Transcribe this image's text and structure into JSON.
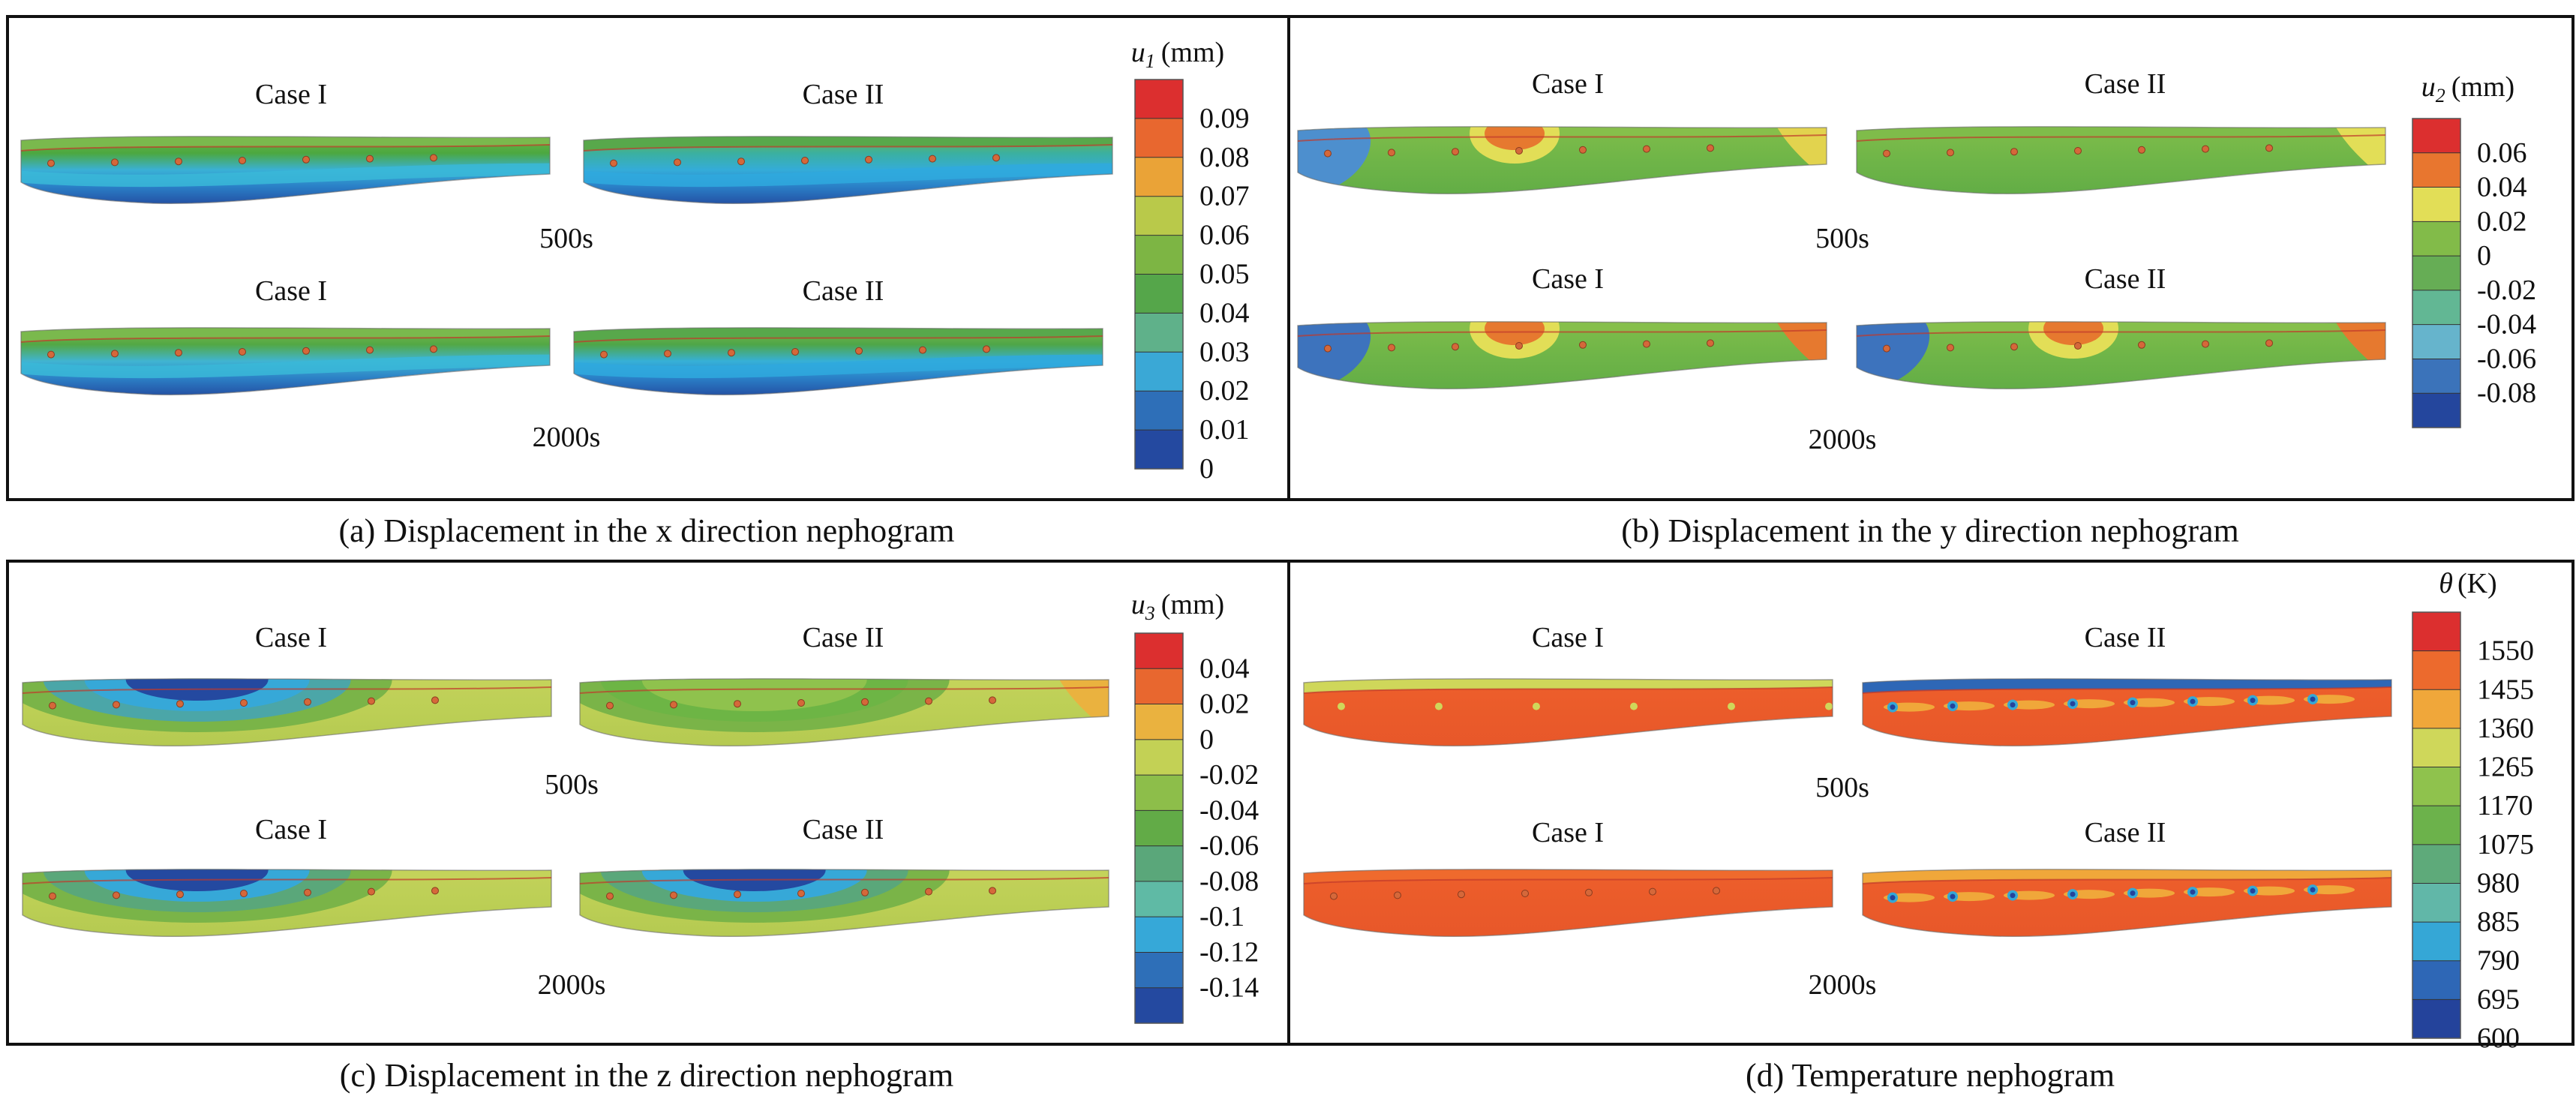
{
  "panels": [
    {
      "id": "a",
      "caption": "(a) Displacement in the x direction nephogram",
      "legend": {
        "variable": "u",
        "subscript": "1",
        "unit": "(mm)",
        "colors": [
          "#dc2f2f",
          "#e8672f",
          "#eaa337",
          "#b9c94a",
          "#7db544",
          "#55a64a",
          "#5fb18a",
          "#3aa8d6",
          "#2e6fb8",
          "#2449a0"
        ],
        "labels": [
          "0.09",
          "0.08",
          "0.07",
          "0.06",
          "0.05",
          "0.04",
          "0.03",
          "0.02",
          "0.01",
          "0"
        ]
      },
      "rows": [
        {
          "time": "500s",
          "cases": [
            {
              "label": "Case I",
              "style": "x500a"
            },
            {
              "label": "Case II",
              "style": "x500b"
            }
          ]
        },
        {
          "time": "2000s",
          "cases": [
            {
              "label": "Case I",
              "style": "x2000a"
            },
            {
              "label": "Case II",
              "style": "x2000b"
            }
          ]
        }
      ]
    },
    {
      "id": "b",
      "caption": "(b) Displacement in the y direction nephogram",
      "legend": {
        "variable": "u",
        "subscript": "2",
        "unit": "(mm)",
        "colors": [
          "#dc2f2f",
          "#e8762f",
          "#e2de57",
          "#82bb49",
          "#66ad55",
          "#62b794",
          "#66b4cc",
          "#3b73ba",
          "#24469d"
        ],
        "labels": [
          "0.06",
          "0.04",
          "0.02",
          "0",
          "-0.02",
          "-0.04",
          "-0.06",
          "-0.08"
        ]
      },
      "rows": [
        {
          "time": "500s",
          "cases": [
            {
              "label": "Case I",
              "style": "y500a"
            },
            {
              "label": "Case II",
              "style": "y500b"
            }
          ]
        },
        {
          "time": "2000s",
          "cases": [
            {
              "label": "Case I",
              "style": "y2000a"
            },
            {
              "label": "Case II",
              "style": "y2000b"
            }
          ]
        }
      ]
    },
    {
      "id": "c",
      "caption": "(c) Displacement in the z direction nephogram",
      "legend": {
        "variable": "u",
        "subscript": "3",
        "unit": "(mm)",
        "colors": [
          "#dc2f2f",
          "#e8672f",
          "#eab23f",
          "#c3d155",
          "#8dbe4a",
          "#62ab47",
          "#5aa77a",
          "#5fbaa5",
          "#36a8d8",
          "#2e6fb8",
          "#2449a0"
        ],
        "labels": [
          "0.04",
          "0.02",
          "0",
          "-0.02",
          "-0.04",
          "-0.06",
          "-0.08",
          "-0.1",
          "-0.12",
          "-0.14"
        ]
      },
      "rows": [
        {
          "time": "500s",
          "cases": [
            {
              "label": "Case I",
              "style": "z500a"
            },
            {
              "label": "Case II",
              "style": "z500b"
            }
          ]
        },
        {
          "time": "2000s",
          "cases": [
            {
              "label": "Case I",
              "style": "z2000a"
            },
            {
              "label": "Case II",
              "style": "z2000b"
            }
          ]
        }
      ]
    },
    {
      "id": "d",
      "caption": "(d) Temperature nephogram",
      "legend": {
        "variable": "θ",
        "subscript": "",
        "unit": "(K)",
        "colors": [
          "#dc2f2f",
          "#ec6a2d",
          "#f0a73a",
          "#cfd75a",
          "#8fc24d",
          "#6cb24b",
          "#5eaa7a",
          "#61b7a8",
          "#35a7d6",
          "#2e67b6",
          "#24439b"
        ],
        "labels": [
          "1550",
          "1455",
          "1360",
          "1265",
          "1170",
          "1075",
          "980",
          "885",
          "790",
          "695",
          "600"
        ]
      },
      "rows": [
        {
          "time": "500s",
          "cases": [
            {
              "label": "Case I",
              "style": "t500a"
            },
            {
              "label": "Case II",
              "style": "t500b"
            }
          ]
        },
        {
          "time": "2000s",
          "cases": [
            {
              "label": "Case I",
              "style": "t2000a"
            },
            {
              "label": "Case II",
              "style": "t2000b"
            }
          ]
        }
      ]
    }
  ]
}
